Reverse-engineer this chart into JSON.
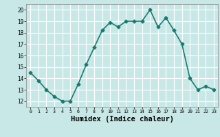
{
  "x": [
    0,
    1,
    2,
    3,
    4,
    5,
    6,
    7,
    8,
    9,
    10,
    11,
    12,
    13,
    14,
    15,
    16,
    17,
    18,
    19,
    20,
    21,
    22,
    23
  ],
  "y": [
    14.5,
    13.8,
    13.0,
    12.4,
    12.0,
    12.0,
    13.5,
    15.2,
    16.7,
    18.2,
    18.9,
    18.5,
    19.0,
    19.0,
    19.0,
    20.0,
    18.5,
    19.3,
    18.2,
    17.0,
    14.0,
    13.0,
    13.3,
    13.0
  ],
  "line_color": "#1a7a6e",
  "marker": "D",
  "marker_size": 2.5,
  "bg_color": "#c8e8e8",
  "grid_color": "#ffffff",
  "xlabel": "Humidex (Indice chaleur)",
  "xlabel_fontsize": 7.5,
  "ylabel_ticks": [
    12,
    13,
    14,
    15,
    16,
    17,
    18,
    19,
    20
  ],
  "xlim": [
    -0.5,
    23.5
  ],
  "ylim": [
    11.5,
    20.5
  ],
  "line_width": 1.2,
  "xtick_labels": [
    "0",
    "1",
    "2",
    "3",
    "4",
    "5",
    "6",
    "7",
    "8",
    "9",
    "10",
    "11",
    "12",
    "13",
    "14",
    "15",
    "16",
    "17",
    "18",
    "19",
    "20",
    "21",
    "22",
    "23"
  ]
}
